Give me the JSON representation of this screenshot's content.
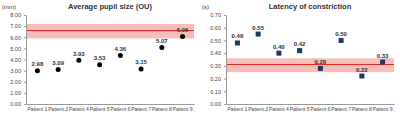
{
  "chart_data": [
    {
      "type": "scatter",
      "title": "Average pupil size (OU)",
      "y_label": "(mm)",
      "categories": [
        "Patient 1",
        "Patient 3",
        "Patient 4",
        "Patient 5",
        "Patient 6",
        "Patient 7",
        "Patient 8",
        "Patient 9"
      ],
      "values": [
        2.98,
        3.09,
        3.93,
        3.53,
        4.36,
        3.15,
        5.07,
        6.06
      ],
      "color": "#000000",
      "marker": "circle",
      "data_labels": true,
      "grid": false,
      "ylim": [
        0,
        8
      ],
      "yticks": [
        {
          "value": 0,
          "label": "0.00"
        },
        {
          "value": 1,
          "label": "1.00"
        },
        {
          "value": 2,
          "label": "2.00"
        },
        {
          "value": 3,
          "label": "3.00"
        },
        {
          "value": 4,
          "label": "4.00"
        },
        {
          "value": 5,
          "label": "5.00"
        },
        {
          "value": 6,
          "label": "6.00"
        },
        {
          "value": 7,
          "label": "7.00"
        },
        {
          "value": 8,
          "label": "8.00"
        }
      ],
      "reference_range": [
        5.9,
        7.2
      ],
      "reference_line": 6.6
    },
    {
      "type": "scatter",
      "title": "Latency of constriction",
      "y_label": "(s)",
      "categories": [
        "Patient 1",
        "Patient 3",
        "Patient 4",
        "Patient 5",
        "Patient 6",
        "Patient 7",
        "Patient 8",
        "Patient 9"
      ],
      "values": [
        0.48,
        0.55,
        0.4,
        0.42,
        0.28,
        0.5,
        0.22,
        0.33
      ],
      "value_labels": [
        "0.48",
        "0.55",
        "0.40",
        "0.42",
        "0.28",
        "0.50",
        "0.22",
        "0.33"
      ],
      "color": "#1f3864",
      "marker": "square",
      "data_labels": true,
      "grid": false,
      "ylim": [
        0,
        0.7
      ],
      "yticks": [
        {
          "value": 0,
          "label": "0.00"
        },
        {
          "value": 0.1,
          "label": "0.10"
        },
        {
          "value": 0.2,
          "label": "0.20"
        },
        {
          "value": 0.3,
          "label": "0.30"
        },
        {
          "value": 0.4,
          "label": "0.40"
        },
        {
          "value": 0.5,
          "label": "0.50"
        },
        {
          "value": 0.6,
          "label": "0.60"
        },
        {
          "value": 0.7,
          "label": "0.70"
        }
      ],
      "reference_range": [
        0.25,
        0.36
      ],
      "reference_line": 0.31
    }
  ]
}
